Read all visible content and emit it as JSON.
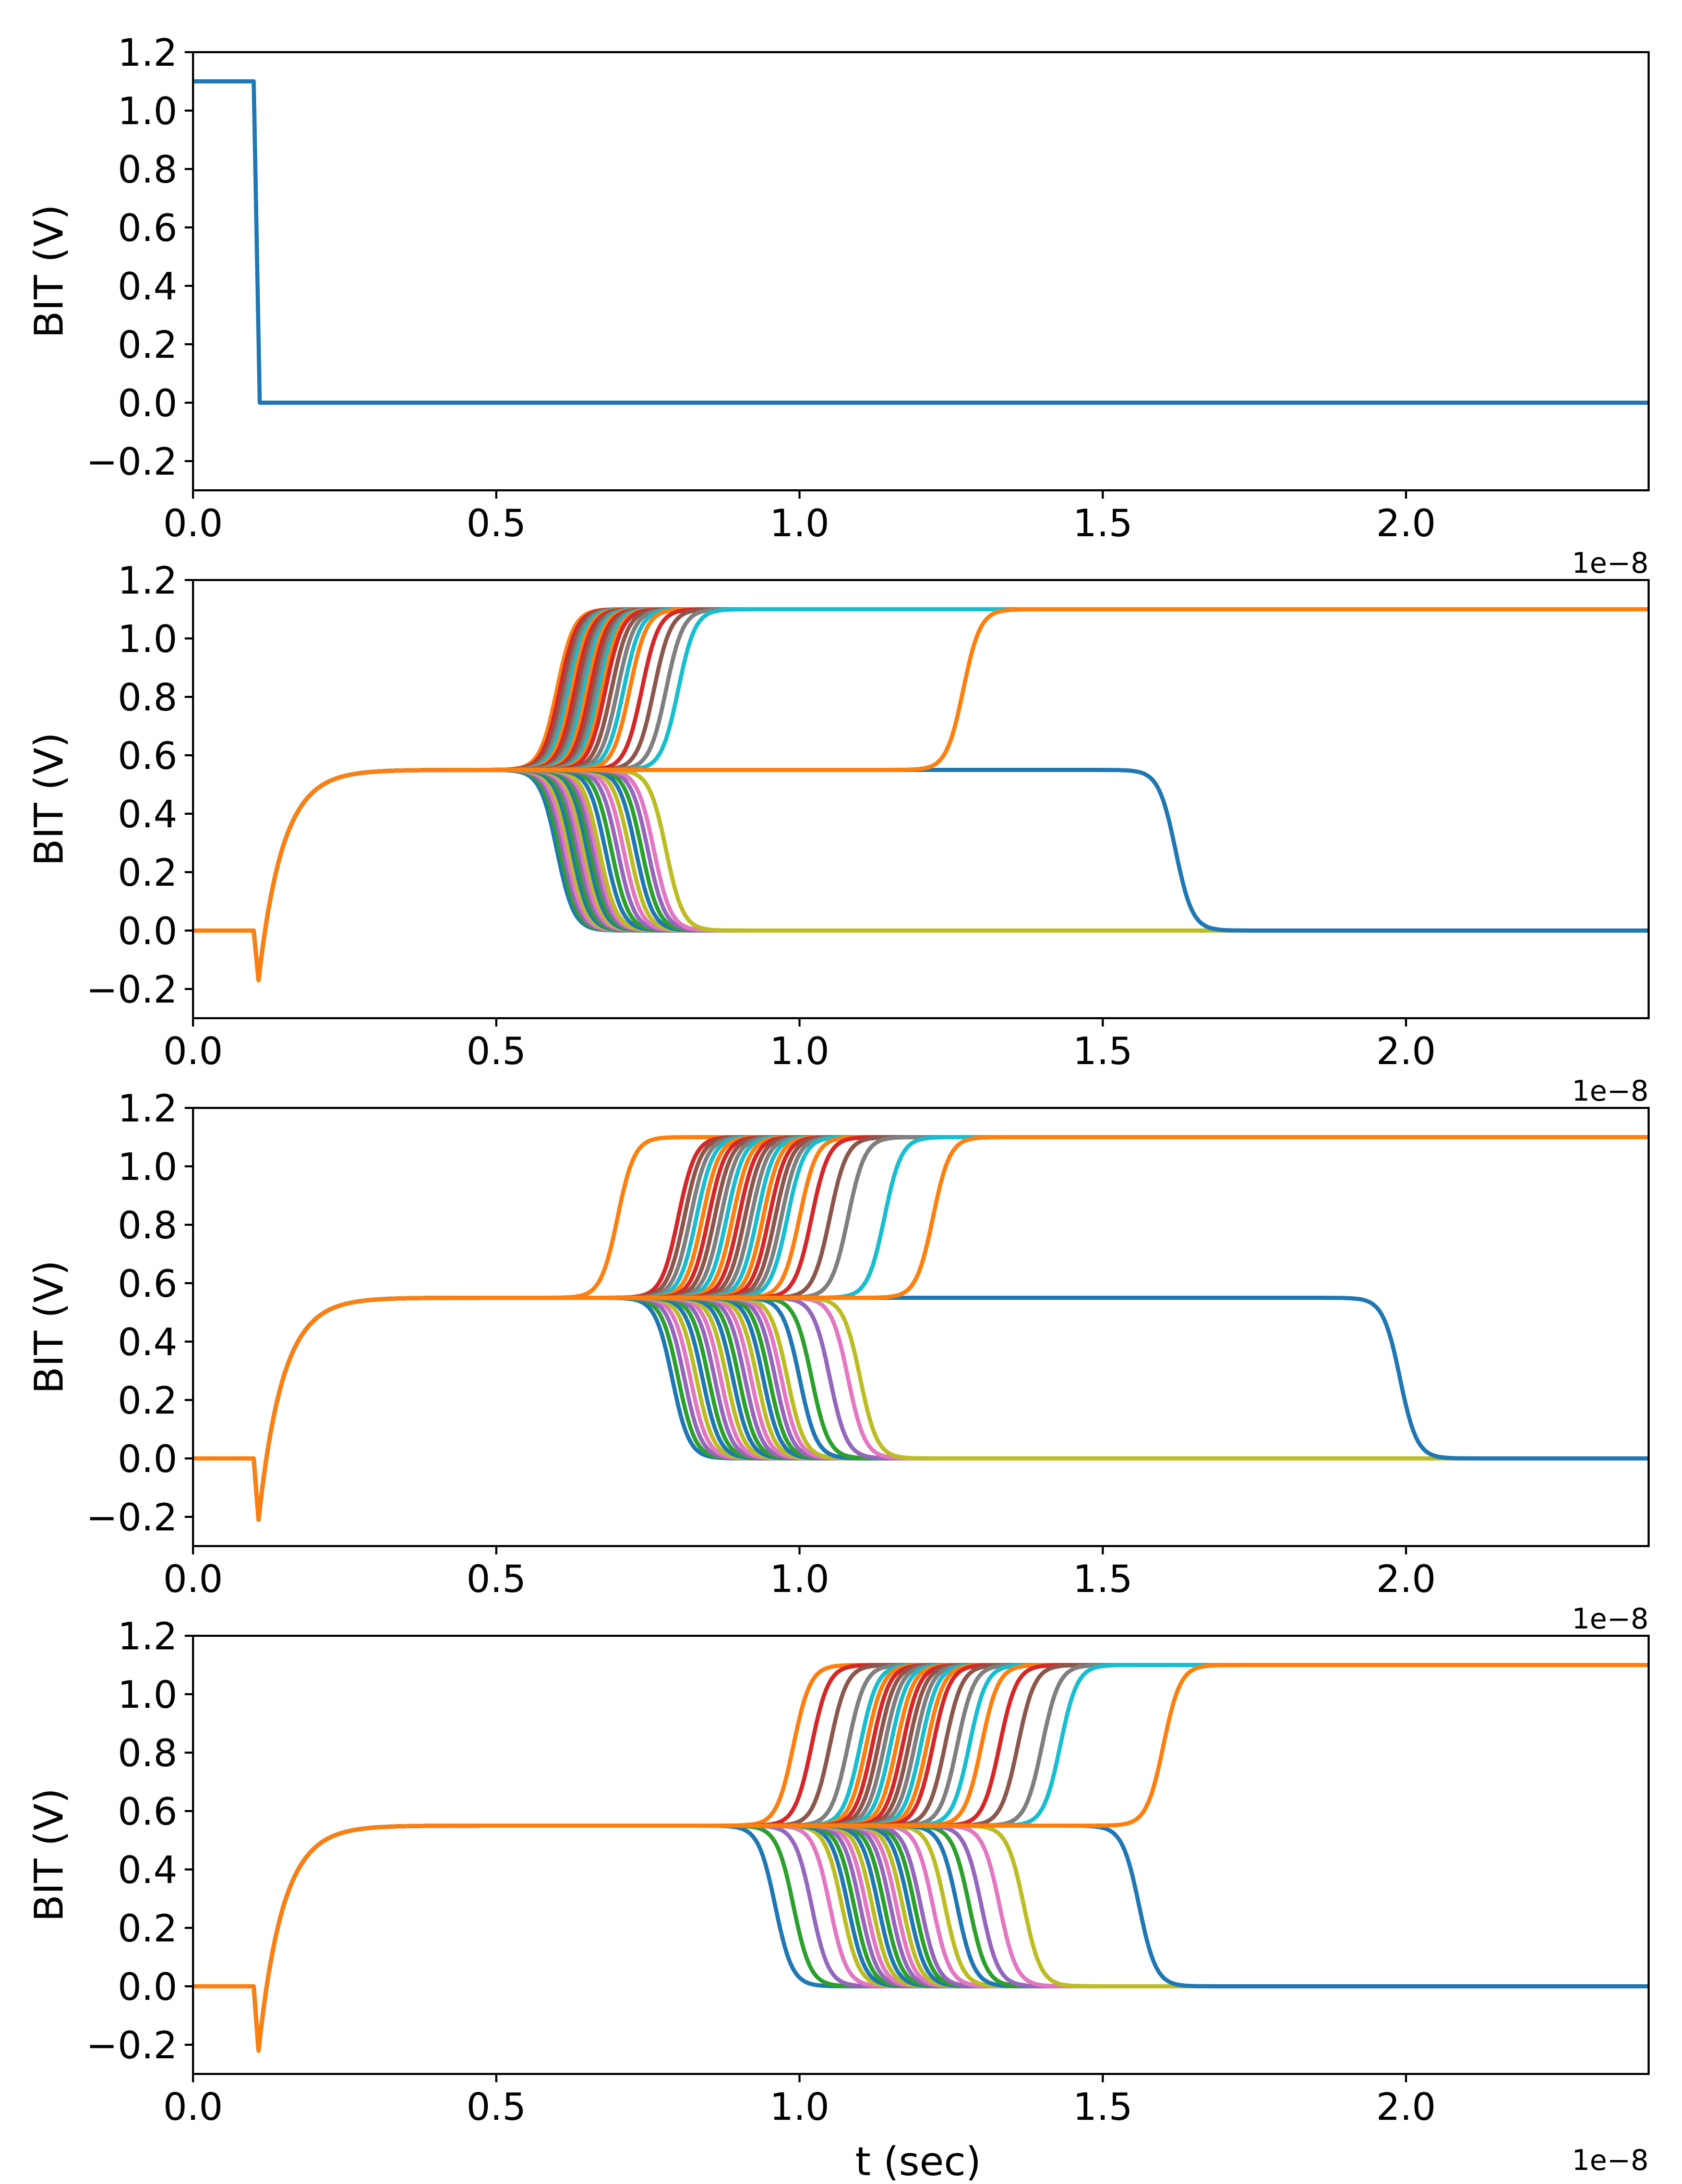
{
  "figure": {
    "xlabel": "t (sec)",
    "offset_text": "1e−8"
  },
  "colors": [
    "#1f77b4",
    "#ff7f0e",
    "#2ca02c",
    "#d62728",
    "#9467bd",
    "#8c564b",
    "#e377c2",
    "#7f7f7f",
    "#bcbd22",
    "#17becf"
  ],
  "chart_data": [
    {
      "type": "line",
      "title": "",
      "xlabel": "",
      "ylabel": "BIT (V)",
      "xlim": [
        0,
        2.4
      ],
      "ylim": [
        -0.3,
        1.2
      ],
      "x_unit_scale": "1e-8",
      "xticks": [
        "0.0",
        "0.5",
        "1.0",
        "1.5",
        "2.0"
      ],
      "yticks": [
        "−0.2",
        "0.0",
        "0.2",
        "0.4",
        "0.6",
        "0.8",
        "1.0",
        "1.2"
      ],
      "offset_text": "",
      "series": [
        {
          "name": "BIT",
          "color": "#1f77b4",
          "points": [
            [
              0,
              1.1
            ],
            [
              0.1,
              1.1
            ],
            [
              0.11,
              0.0
            ],
            [
              2.4,
              0.0
            ]
          ]
        }
      ]
    },
    {
      "type": "line",
      "title": "",
      "xlabel": "",
      "ylabel": "BIT (V)",
      "xlim": [
        0,
        2.4
      ],
      "ylim": [
        -0.3,
        1.2
      ],
      "x_unit_scale": "1e-8",
      "xticks": [
        "0.0",
        "0.5",
        "1.0",
        "1.5",
        "2.0"
      ],
      "yticks": [
        "−0.2",
        "0.0",
        "0.2",
        "0.4",
        "0.6",
        "0.8",
        "1.0",
        "1.2"
      ],
      "offset_text": "1e−8",
      "transient": {
        "start": 0.1,
        "dip_time": 0.108,
        "dip": -0.17,
        "settle": 0.55
      },
      "switch_up_times": [
        0.6,
        0.605,
        0.61,
        0.615,
        0.62,
        0.625,
        0.63,
        0.635,
        0.64,
        0.645,
        0.65,
        0.655,
        0.66,
        0.665,
        0.67,
        0.675,
        0.68,
        0.69,
        0.7,
        0.71,
        0.72,
        0.74,
        0.76,
        0.78,
        0.8,
        1.27
      ],
      "switch_down_times": [
        0.6,
        0.605,
        0.61,
        0.615,
        0.62,
        0.625,
        0.63,
        0.635,
        0.64,
        0.645,
        0.65,
        0.655,
        0.66,
        0.665,
        0.67,
        0.68,
        0.69,
        0.7,
        0.71,
        0.72,
        0.73,
        0.74,
        0.75,
        0.76,
        0.78,
        1.62
      ]
    },
    {
      "type": "line",
      "title": "",
      "xlabel": "",
      "ylabel": "BIT (V)",
      "xlim": [
        0,
        2.4
      ],
      "ylim": [
        -0.3,
        1.2
      ],
      "x_unit_scale": "1e-8",
      "xticks": [
        "0.0",
        "0.5",
        "1.0",
        "1.5",
        "2.0"
      ],
      "yticks": [
        "−0.2",
        "0.0",
        "0.2",
        "0.4",
        "0.6",
        "0.8",
        "1.0",
        "1.2"
      ],
      "offset_text": "1e−8",
      "transient": {
        "start": 0.1,
        "dip_time": 0.108,
        "dip": -0.21,
        "settle": 0.55
      },
      "switch_up_times": [
        0.7,
        0.8,
        0.81,
        0.82,
        0.83,
        0.84,
        0.85,
        0.86,
        0.87,
        0.88,
        0.89,
        0.9,
        0.91,
        0.92,
        0.93,
        0.94,
        0.95,
        0.96,
        0.97,
        0.98,
        1.0,
        1.02,
        1.05,
        1.08,
        1.14,
        1.22
      ],
      "switch_down_times": [
        0.79,
        0.8,
        0.81,
        0.82,
        0.83,
        0.84,
        0.85,
        0.86,
        0.87,
        0.88,
        0.89,
        0.9,
        0.91,
        0.92,
        0.93,
        0.94,
        0.95,
        0.96,
        0.97,
        0.98,
        1.0,
        1.02,
        1.05,
        1.08,
        1.1,
        1.99
      ]
    },
    {
      "type": "line",
      "title": "",
      "xlabel": "t (sec)",
      "ylabel": "BIT (V)",
      "xlim": [
        0,
        2.4
      ],
      "ylim": [
        -0.3,
        1.2
      ],
      "x_unit_scale": "1e-8",
      "xticks": [
        "0.0",
        "0.5",
        "1.0",
        "1.5",
        "2.0"
      ],
      "yticks": [
        "−0.2",
        "0.0",
        "0.2",
        "0.4",
        "0.6",
        "0.8",
        "1.0",
        "1.2"
      ],
      "offset_text": "1e−8",
      "transient": {
        "start": 0.1,
        "dip_time": 0.108,
        "dip": -0.22,
        "settle": 0.55
      },
      "switch_up_times": [
        0.99,
        1.02,
        1.05,
        1.08,
        1.1,
        1.11,
        1.12,
        1.13,
        1.14,
        1.15,
        1.16,
        1.17,
        1.18,
        1.19,
        1.2,
        1.21,
        1.22,
        1.24,
        1.26,
        1.28,
        1.3,
        1.33,
        1.36,
        1.4,
        1.43,
        1.6
      ],
      "switch_down_times": [
        0.96,
        0.99,
        1.02,
        1.05,
        1.07,
        1.08,
        1.09,
        1.1,
        1.11,
        1.12,
        1.13,
        1.14,
        1.15,
        1.16,
        1.17,
        1.18,
        1.19,
        1.2,
        1.22,
        1.24,
        1.26,
        1.28,
        1.3,
        1.33,
        1.37,
        1.56
      ]
    }
  ]
}
